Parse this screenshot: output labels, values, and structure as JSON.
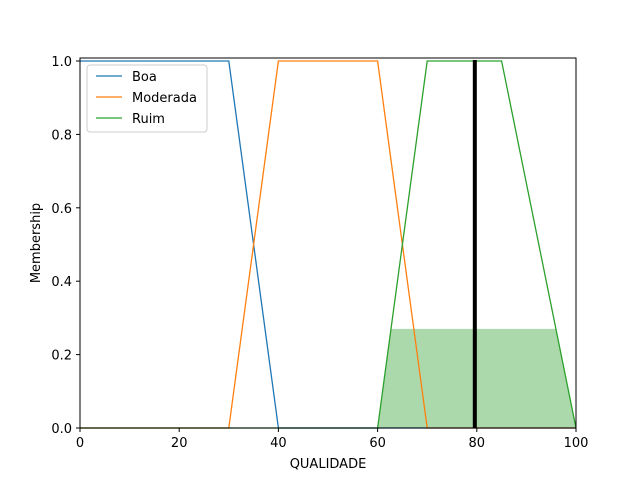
{
  "chart_data": {
    "type": "line",
    "xlabel": "QUALIDADE",
    "ylabel": "Membership",
    "xlim": [
      0,
      100
    ],
    "ylim": [
      0,
      1.0
    ],
    "x_ticks": [
      "0",
      "20",
      "40",
      "60",
      "80",
      "100"
    ],
    "y_ticks": [
      "0.0",
      "0.2",
      "0.4",
      "0.6",
      "0.8",
      "1.0"
    ],
    "grid": false,
    "legend_position": "top-left",
    "series": [
      {
        "name": "Boa",
        "color": "#1f77b4",
        "points": [
          [
            0,
            1.0
          ],
          [
            30,
            1.0
          ],
          [
            40,
            0.0
          ],
          [
            100,
            0.0
          ]
        ]
      },
      {
        "name": "Moderada",
        "color": "#ff7f0e",
        "points": [
          [
            0,
            0.0
          ],
          [
            30,
            0.0
          ],
          [
            40,
            1.0
          ],
          [
            60,
            1.0
          ],
          [
            70,
            0.0
          ],
          [
            100,
            0.0
          ]
        ]
      },
      {
        "name": "Ruim",
        "color": "#2ca02c",
        "points": [
          [
            0,
            0.0
          ],
          [
            60,
            0.0
          ],
          [
            70,
            1.0
          ],
          [
            85,
            1.0
          ],
          [
            100,
            0.0
          ]
        ]
      }
    ],
    "fill": {
      "color": "#2ca02c",
      "opacity": 0.4,
      "points": [
        [
          60,
          0.0
        ],
        [
          62.7,
          0.27
        ],
        [
          96,
          0.27
        ],
        [
          100,
          0.0
        ]
      ]
    },
    "marker_line": {
      "x": 79.6,
      "ymin": 0.0,
      "ymax": 1.0,
      "color": "#000000"
    }
  }
}
